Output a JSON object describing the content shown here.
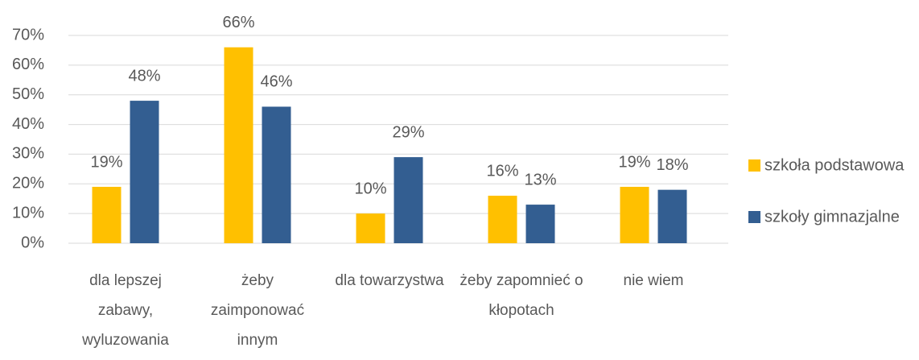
{
  "chart_data": {
    "type": "bar",
    "categories": [
      "dla lepszej zabawy, wyluzowania",
      "żeby zaimponować innym",
      "dla towarzystwa",
      "żeby zapomnieć o kłopotach",
      "nie wiem"
    ],
    "series": [
      {
        "name": "szkoła podstawowa",
        "color": "#ffc000",
        "values": [
          19,
          66,
          10,
          16,
          19
        ],
        "value_labels": [
          "19%",
          "66%",
          "10%",
          "16%",
          "19%"
        ]
      },
      {
        "name": "szkoły gimnazjalne",
        "color": "#335e91",
        "values": [
          48,
          46,
          29,
          13,
          18
        ],
        "value_labels": [
          "48%",
          "46%",
          "29%",
          "13%",
          "18%"
        ]
      }
    ],
    "ylim": [
      0,
      70
    ],
    "yticks": [
      {
        "value": 0,
        "label": "0%"
      },
      {
        "value": 10,
        "label": "10%"
      },
      {
        "value": 20,
        "label": "20%"
      },
      {
        "value": 30,
        "label": "30%"
      },
      {
        "value": 40,
        "label": "40%"
      },
      {
        "value": 50,
        "label": "50%"
      },
      {
        "value": 60,
        "label": "60%"
      },
      {
        "value": 70,
        "label": "70%"
      }
    ],
    "grid": true,
    "legend": "right"
  }
}
